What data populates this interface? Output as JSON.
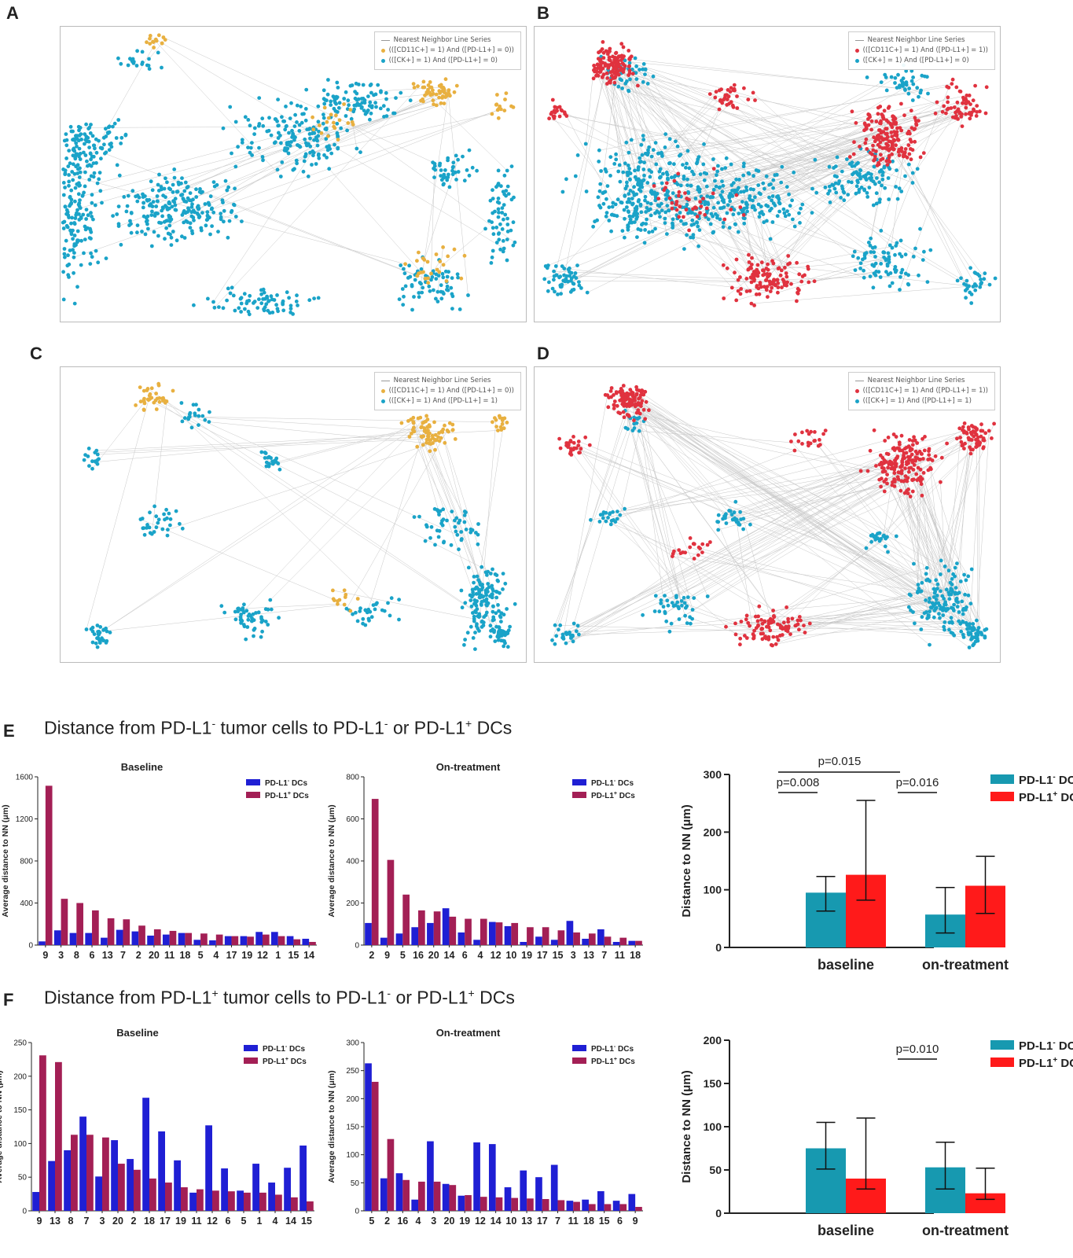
{
  "panels": {
    "A": {
      "letter": "A",
      "legend": {
        "line_label": "Nearest Neighbor Line Series",
        "series1_label": "(([CD11C+] = 1) And ([PD-L1+] = 0))",
        "series2_label": "(([CK+] = 1) And ([PD-L1+] = 0)"
      },
      "color1": "#e8b040",
      "color2": "#1aa3c8"
    },
    "B": {
      "letter": "B",
      "legend": {
        "line_label": "Nearest Neighbor Line Series",
        "series1_label": "(([CD11C+] = 1) And ([PD-L1+] = 1))",
        "series2_label": "([CK+] = 1) And ([PD-L1+] = 0)"
      },
      "color1": "#e0323f",
      "color2": "#1aa3c8"
    },
    "C": {
      "letter": "C",
      "legend": {
        "line_label": "Nearest Neighbor Line Series",
        "series1_label": "(([CD11C+] = 1) And ([PD-L1+] = 0))",
        "series2_label": "(([CK+] = 1) And ([PD-L1+] = 1)"
      },
      "color1": "#e8b040",
      "color2": "#1aa3c8"
    },
    "D": {
      "letter": "D",
      "legend": {
        "line_label": "Nearest Neighbor Line Series",
        "series1_label": "(([CD11C+] = 1) And ([PD-L1+] = 1))",
        "series2_label": "(([CK+] = 1) And ([PD-L1+] = 1)"
      },
      "color1": "#e0323f",
      "color2": "#1aa3c8"
    }
  },
  "sections": {
    "E": {
      "letter": "E",
      "title_a": "Distance from PD-L1",
      "title_sup1": "-",
      "title_b": " tumor cells to PD-L1",
      "title_sup2": "-",
      "title_c": " or PD-L1",
      "title_sup3": "+",
      "title_d": " DCs"
    },
    "F": {
      "letter": "F",
      "title_a": "Distance from PD-L1",
      "title_sup1": "+",
      "title_b": " tumor cells to PD-L1",
      "title_sup2": "-",
      "title_c": " or PD-L1",
      "title_sup3": "+",
      "title_d": " DCs"
    }
  },
  "colors": {
    "neg_bar": "#1f1fd4",
    "pos_bar": "#a31f55",
    "summary_neg": "#1799b0",
    "summary_pos": "#ff1a1a"
  },
  "chart_data": [
    {
      "id": "E-baseline",
      "type": "bar",
      "title": "Baseline",
      "ylabel": "Average distance to NN (μm)",
      "ylim": [
        0,
        1600
      ],
      "yticks": [
        0,
        400,
        800,
        1200,
        1600
      ],
      "categories": [
        "9",
        "3",
        "8",
        "6",
        "13",
        "7",
        "2",
        "20",
        "11",
        "18",
        "5",
        "4",
        "17",
        "19",
        "12",
        "1",
        "15",
        "14"
      ],
      "series": [
        {
          "name": "PD-L1⁻ DCs",
          "values": [
            35,
            140,
            115,
            115,
            70,
            145,
            130,
            90,
            100,
            115,
            50,
            45,
            85,
            85,
            125,
            125,
            85,
            60
          ]
        },
        {
          "name": "PD-L1⁺ DCs",
          "values": [
            1515,
            440,
            400,
            330,
            255,
            245,
            185,
            150,
            135,
            115,
            110,
            100,
            85,
            80,
            100,
            85,
            55,
            30
          ]
        }
      ]
    },
    {
      "id": "E-ontreatment",
      "type": "bar",
      "title": "On-treatment",
      "ylabel": "Average distance to NN (μm)",
      "ylim": [
        0,
        800
      ],
      "yticks": [
        0,
        200,
        400,
        600,
        800
      ],
      "categories": [
        "2",
        "9",
        "5",
        "16",
        "20",
        "14",
        "6",
        "4",
        "12",
        "10",
        "19",
        "17",
        "15",
        "3",
        "13",
        "7",
        "11",
        "18"
      ],
      "series": [
        {
          "name": "PD-L1⁻ DCs",
          "values": [
            105,
            35,
            55,
            85,
            105,
            175,
            60,
            25,
            110,
            90,
            15,
            40,
            25,
            115,
            30,
            75,
            15,
            20
          ]
        },
        {
          "name": "PD-L1⁺ DCs",
          "values": [
            695,
            405,
            240,
            165,
            160,
            135,
            125,
            125,
            108,
            105,
            85,
            85,
            70,
            60,
            55,
            40,
            35,
            20
          ]
        }
      ]
    },
    {
      "id": "E-summary",
      "type": "bar",
      "ylabel": "Distance to NN (μm)",
      "ylim": [
        0,
        300
      ],
      "yticks": [
        0,
        100,
        200,
        300
      ],
      "categories": [
        "baseline",
        "on-treatment"
      ],
      "series": [
        {
          "name": "PD-L1⁻ DCs",
          "values": [
            95,
            57
          ],
          "err_low": [
            63,
            25
          ],
          "err_high": [
            123,
            104
          ]
        },
        {
          "name": "PD-L1⁺ DCs",
          "values": [
            126,
            107
          ],
          "err_low": [
            82,
            59
          ],
          "err_high": [
            255,
            158
          ]
        }
      ],
      "annotations": [
        {
          "label": "p=0.008"
        },
        {
          "label": "p=0.016"
        },
        {
          "label": "p=0.015"
        }
      ]
    },
    {
      "id": "F-baseline",
      "type": "bar",
      "title": "Baseline",
      "ylabel": "Average distance to NN (μm)",
      "ylim": [
        0,
        250
      ],
      "yticks": [
        0,
        50,
        100,
        150,
        200,
        250
      ],
      "categories": [
        "9",
        "13",
        "8",
        "7",
        "3",
        "20",
        "2",
        "18",
        "17",
        "19",
        "11",
        "12",
        "6",
        "5",
        "1",
        "4",
        "14",
        "15"
      ],
      "series": [
        {
          "name": "PD-L1⁻ DCs",
          "values": [
            28,
            74,
            90,
            140,
            51,
            105,
            77,
            168,
            118,
            75,
            27,
            127,
            63,
            30,
            70,
            42,
            64,
            97
          ]
        },
        {
          "name": "PD-L1⁺ DCs",
          "values": [
            231,
            221,
            113,
            113,
            109,
            70,
            61,
            48,
            42,
            35,
            32,
            30,
            29,
            27,
            27,
            24,
            20,
            14
          ]
        }
      ]
    },
    {
      "id": "F-ontreatment",
      "type": "bar",
      "title": "On-treatment",
      "ylabel": "Average distance to NN (μm)",
      "ylim": [
        0,
        300
      ],
      "yticks": [
        0,
        50,
        100,
        150,
        200,
        250,
        300
      ],
      "categories": [
        "5",
        "2",
        "16",
        "4",
        "3",
        "20",
        "19",
        "12",
        "14",
        "10",
        "13",
        "17",
        "7",
        "11",
        "18",
        "15",
        "6",
        "9"
      ],
      "series": [
        {
          "name": "PD-L1⁻ DCs",
          "values": [
            263,
            58,
            67,
            20,
            124,
            48,
            27,
            122,
            119,
            42,
            72,
            60,
            82,
            18,
            20,
            35,
            18,
            30
          ]
        },
        {
          "name": "PD-L1⁺ DCs",
          "values": [
            230,
            128,
            55,
            52,
            52,
            46,
            28,
            25,
            24,
            23,
            22,
            21,
            19,
            16,
            12,
            12,
            12,
            7
          ]
        }
      ]
    },
    {
      "id": "F-summary",
      "type": "bar",
      "ylabel": "Distance to NN (μm)",
      "ylim": [
        0,
        200
      ],
      "yticks": [
        0,
        50,
        100,
        150,
        200
      ],
      "categories": [
        "baseline",
        "on-treatment"
      ],
      "series": [
        {
          "name": "PD-L1⁻ DCs",
          "values": [
            75,
            53
          ],
          "err_low": [
            51,
            28
          ],
          "err_high": [
            105,
            82
          ]
        },
        {
          "name": "PD-L1⁺ DCs",
          "values": [
            40,
            23
          ],
          "err_low": [
            28,
            16
          ],
          "err_high": [
            110,
            52
          ]
        }
      ],
      "annotations": [
        {
          "label": "p=0.010"
        }
      ]
    }
  ]
}
